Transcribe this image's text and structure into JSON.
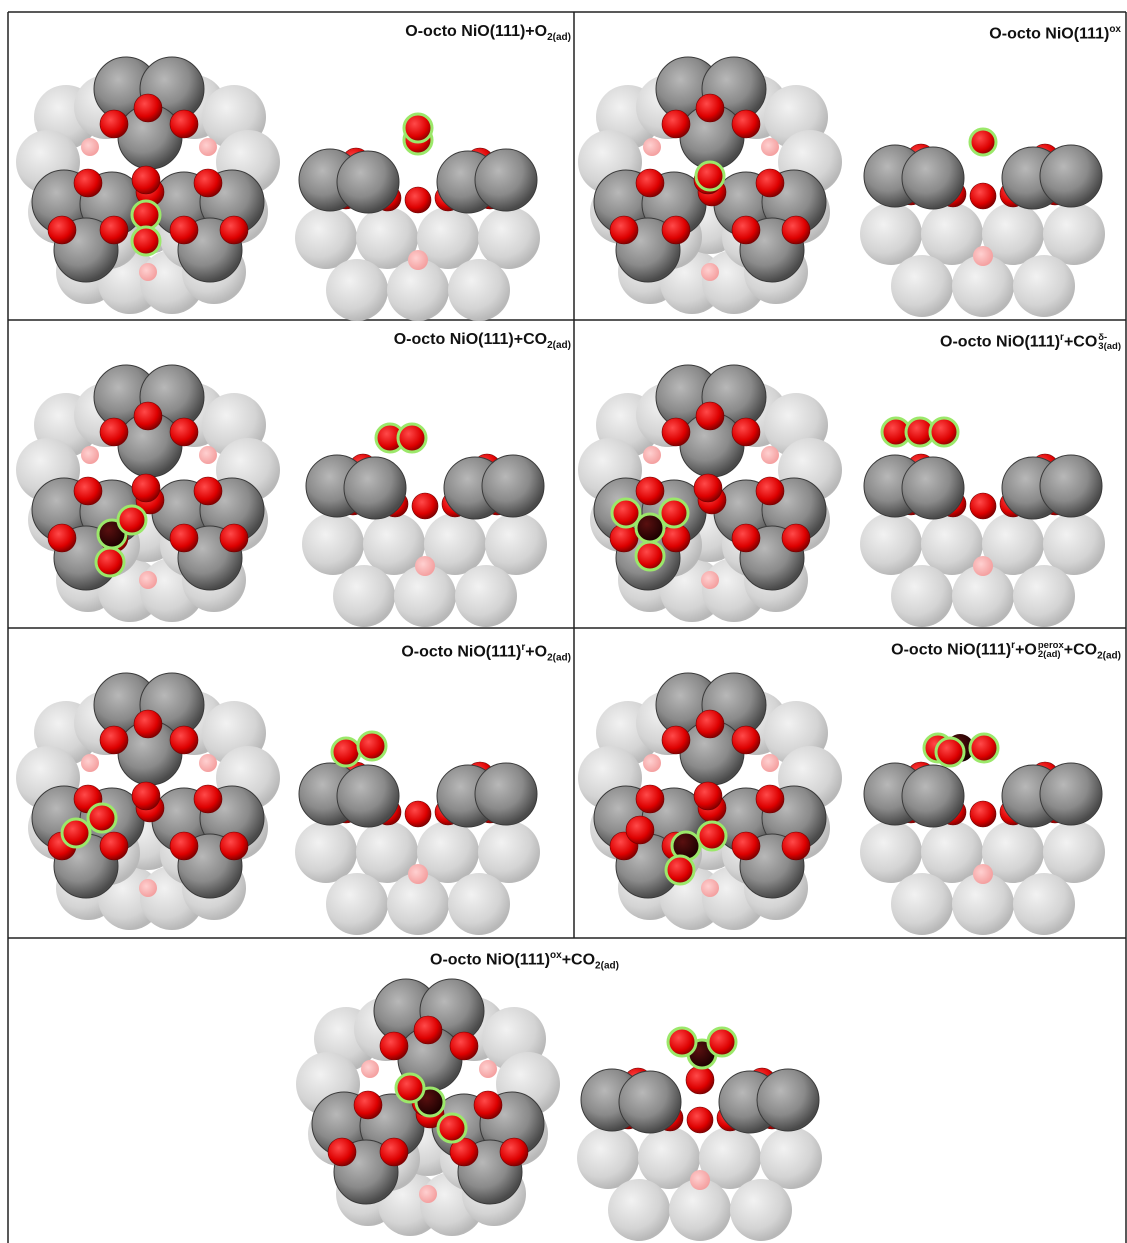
{
  "panels": [
    {
      "id": "p1",
      "title": {
        "base": "O-octo NiO(111)+O",
        "sub": "2(ad)"
      }
    },
    {
      "id": "p2",
      "title": {
        "base": "O-octo NiO(111)",
        "sup": "ox"
      }
    },
    {
      "id": "p3",
      "title": {
        "base": "O-octo NiO(111)+CO",
        "sub": "2(ad)"
      }
    },
    {
      "id": "p4",
      "title": {
        "base": "O-octo NiO(111)",
        "sup1": "r",
        "mid": "+CO",
        "ss_sup": "δ-",
        "ss_sub": "3(ad)"
      }
    },
    {
      "id": "p5",
      "title": {
        "base": "O-octo NiO(111)",
        "sup1": "r",
        "mid": "+O",
        "sub": "2(ad)"
      }
    },
    {
      "id": "p6",
      "title": {
        "base": "O-octo NiO(111)",
        "sup1": "r",
        "mid": "+O",
        "ss_sup": "perox",
        "ss_sub": "2(ad)",
        "end": "+CO",
        "sub2": "2(ad)"
      }
    },
    {
      "id": "p7",
      "title": {
        "base": "O-octo NiO(111)",
        "sup": "ox",
        "mid": "+CO",
        "sub": "2(ad)"
      }
    }
  ],
  "colors": {
    "ni_surface": "#8a8a8a",
    "ni_subsurface": "#d2d2d2",
    "oxygen": "#e00000",
    "carbon": "#2a0000",
    "highlight": "#9be86a",
    "border": "#222222"
  }
}
